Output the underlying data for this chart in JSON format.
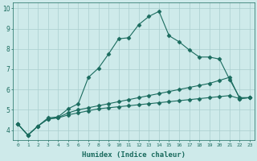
{
  "xlabel": "Humidex (Indice chaleur)",
  "bg_color": "#ceeaea",
  "grid_color": "#aacece",
  "line_color": "#1a6b5e",
  "xlim": [
    -0.5,
    23.5
  ],
  "ylim": [
    3.5,
    10.3
  ],
  "xticks": [
    0,
    1,
    2,
    3,
    4,
    5,
    6,
    7,
    8,
    9,
    10,
    11,
    12,
    13,
    14,
    15,
    16,
    17,
    18,
    19,
    20,
    21,
    22,
    23
  ],
  "yticks": [
    4,
    5,
    6,
    7,
    8,
    9,
    10
  ],
  "series": [
    [
      4.3,
      3.75,
      4.2,
      4.6,
      4.65,
      5.05,
      5.3,
      6.6,
      7.05,
      7.75,
      8.5,
      8.55,
      9.2,
      9.6,
      9.85,
      8.65,
      8.35,
      7.95,
      7.6,
      7.6,
      7.5,
      6.5,
      5.6,
      5.6
    ],
    [
      4.3,
      3.75,
      4.2,
      4.55,
      4.62,
      4.85,
      5.0,
      5.1,
      5.2,
      5.3,
      5.4,
      5.5,
      5.6,
      5.7,
      5.8,
      5.9,
      6.0,
      6.1,
      6.2,
      6.3,
      6.45,
      6.6,
      5.55,
      5.6
    ],
    [
      4.3,
      3.75,
      4.2,
      4.55,
      4.6,
      4.75,
      4.85,
      4.95,
      5.05,
      5.1,
      5.15,
      5.2,
      5.25,
      5.3,
      5.35,
      5.4,
      5.45,
      5.5,
      5.55,
      5.6,
      5.65,
      5.7,
      5.55,
      5.6
    ]
  ]
}
